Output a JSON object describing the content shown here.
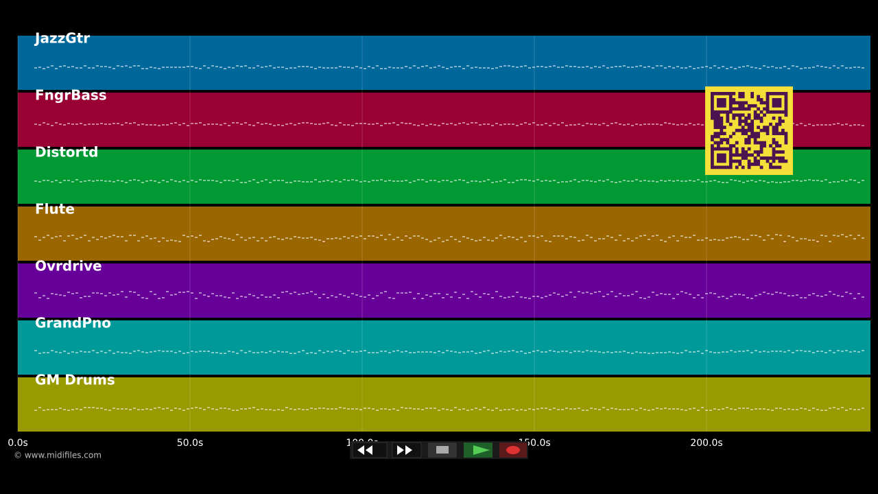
{
  "tracks": [
    {
      "name": "JazzGtr",
      "color": "#00679a"
    },
    {
      "name": "FngrBass",
      "color": "#990033"
    },
    {
      "name": "Distortd",
      "color": "#009933"
    },
    {
      "name": "Flute",
      "color": "#996600"
    },
    {
      "name": "Ovrdrive",
      "color": "#660099"
    },
    {
      "name": "GrandPno",
      "color": "#009999"
    },
    {
      "name": "GM Drums",
      "color": "#999900"
    }
  ],
  "time_axis": {
    "xlim": [
      0,
      247.6
    ],
    "ticks": [
      {
        "value": 0,
        "label": "0.0s"
      },
      {
        "value": 50,
        "label": "50.0s"
      },
      {
        "value": 100,
        "label": "100.0s"
      },
      {
        "value": 150,
        "label": "150.0s"
      },
      {
        "value": 200,
        "label": "200.0s"
      }
    ]
  },
  "footer": {
    "copyright": "© www.midifiles.com"
  }
}
